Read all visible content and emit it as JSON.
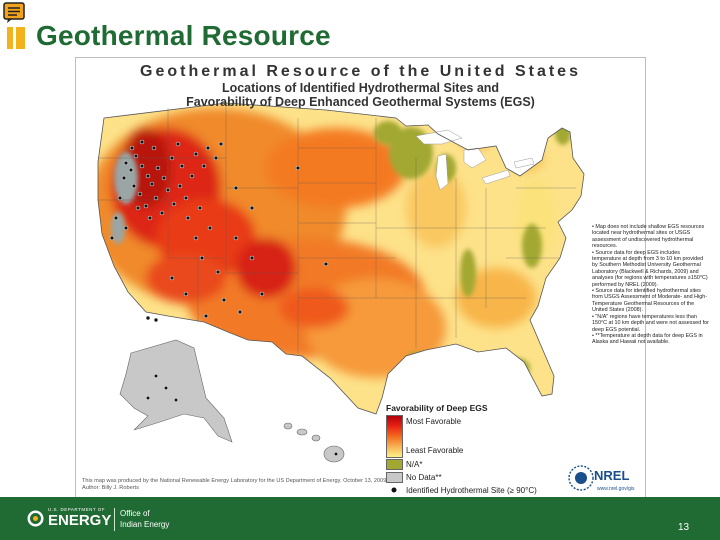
{
  "slide": {
    "title": "Geothermal Resource",
    "page_number": "13"
  },
  "map": {
    "title": "Geothermal Resource of the United States",
    "subtitle_line1": "Locations of Identified Hydrothermal Sites and",
    "subtitle_line2": "Favorability of Deep Enhanced Geothermal Systems (EGS)",
    "notes": [
      "• Map does not include shallow EGS resources located near hydrothermal sites or USGS assessment of undiscovered hydrothermal resources.",
      "• Source data for deep EGS includes temperature at depth from 3 to 10 km provided by Southern Methodist University Geothermal Laboratory (Blackwell & Richards, 2009) and analyses (for regions with temperatures ≥150°C) performed by NREL (2009).",
      "• Source data for identified hydrothermal sites from USGS Assessment of Moderate- and High-Temperature Geothermal Resources of the United States (2008).",
      "• \"N/A\" regions have temperatures less than 150°C at 10 km depth and were not assessed for deep EGS potential.",
      "• **Temperature at depth data for deep EGS in Alaska and Hawaii not available."
    ],
    "legend": {
      "title": "Favorability of Deep EGS",
      "most": "Most Favorable",
      "least": "Least Favorable",
      "na": "N/A*",
      "nodata": "No Data**",
      "site": "Identified Hydrothermal Site (≥ 90°C)"
    },
    "credit": "This map was produced by the National Renewable Energy Laboratory for the US Department of Energy. October 13, 2009 Author: Billy J. Roberts",
    "nrel_logo": "NREL",
    "nrel_url": "www.nrel.gov/gis",
    "colors": {
      "most": "#c1000e",
      "high": "#ee3b16",
      "mid": "#f7931e",
      "least": "#fdf08a",
      "na": "#a3a833",
      "nodata": "#c8c8c8"
    }
  },
  "footer": {
    "agency_small": "U.S. DEPARTMENT OF",
    "agency": "ENERGY",
    "office_line1": "Office of",
    "office_line2": "Indian Energy"
  }
}
